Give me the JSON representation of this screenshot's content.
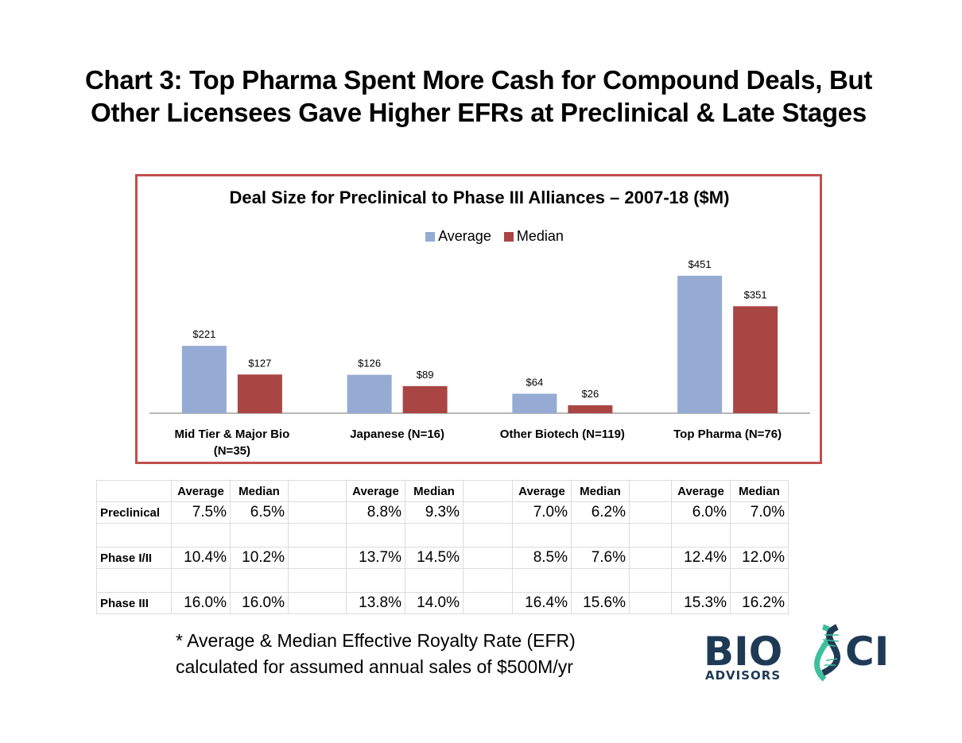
{
  "title_line1": "Chart 3:  Top Pharma Spent More Cash for Compound Deals, But",
  "title_line2": "Other Licensees Gave Higher EFRs at Preclinical & Late Stages",
  "chart_data": {
    "type": "bar",
    "title": "Deal Size for Preclinical to Phase III Alliances – 2007-18 ($M)",
    "categories": [
      "Mid Tier & Major Bio (N=35)",
      "Japanese (N=16)",
      "Other Biotech (N=119)",
      "Top Pharma (N=76)"
    ],
    "category_lines": [
      [
        "Mid Tier & Major Bio",
        "(N=35)"
      ],
      [
        "Japanese (N=16)"
      ],
      [
        "Other Biotech (N=119)"
      ],
      [
        "Top Pharma (N=76)"
      ]
    ],
    "series": [
      {
        "name": "Average",
        "color": "#95abd3",
        "values": [
          221,
          126,
          64,
          451
        ],
        "labels": [
          "$221",
          "$126",
          "$64",
          "$451"
        ]
      },
      {
        "name": "Median",
        "color": "#a94644",
        "values": [
          127,
          89,
          26,
          351
        ],
        "labels": [
          "$127",
          "$89",
          "$26",
          "$351"
        ]
      }
    ],
    "xlabel": "",
    "ylabel": "",
    "ylim": [
      0,
      451
    ],
    "grid": false,
    "legend": "top-center",
    "frame_color": "#c0504d"
  },
  "table": {
    "header": [
      "",
      "Average",
      "Median",
      "",
      "Average",
      "Median",
      "",
      "Average",
      "Median",
      "",
      "Average",
      "Median"
    ],
    "rows": [
      [
        "Preclinical",
        "7.5%",
        "6.5%",
        "",
        "8.8%",
        "9.3%",
        "",
        "7.0%",
        "6.2%",
        "",
        "6.0%",
        "7.0%"
      ],
      [
        "",
        "",
        "",
        "",
        "",
        "",
        "",
        "",
        "",
        "",
        "",
        ""
      ],
      [
        "Phase I/II",
        "10.4%",
        "10.2%",
        "",
        "13.7%",
        "14.5%",
        "",
        "8.5%",
        "7.6%",
        "",
        "12.4%",
        "12.0%"
      ],
      [
        "",
        "",
        "",
        "",
        "",
        "",
        "",
        "",
        "",
        "",
        "",
        ""
      ],
      [
        "Phase III",
        "16.0%",
        "16.0%",
        "",
        "13.8%",
        "14.0%",
        "",
        "16.4%",
        "15.6%",
        "",
        "15.3%",
        "16.2%"
      ]
    ]
  },
  "footnote": {
    "line1": "* Average & Median Effective Royalty Rate (EFR)",
    "line2": "calculated for assumed annual sales of $500M/yr"
  },
  "logo": {
    "text_bio": "BIO",
    "text_ci": "CI",
    "text_sub": "ADVISORS",
    "navy": "#1e3a55",
    "teal": "#3dbf9c"
  }
}
